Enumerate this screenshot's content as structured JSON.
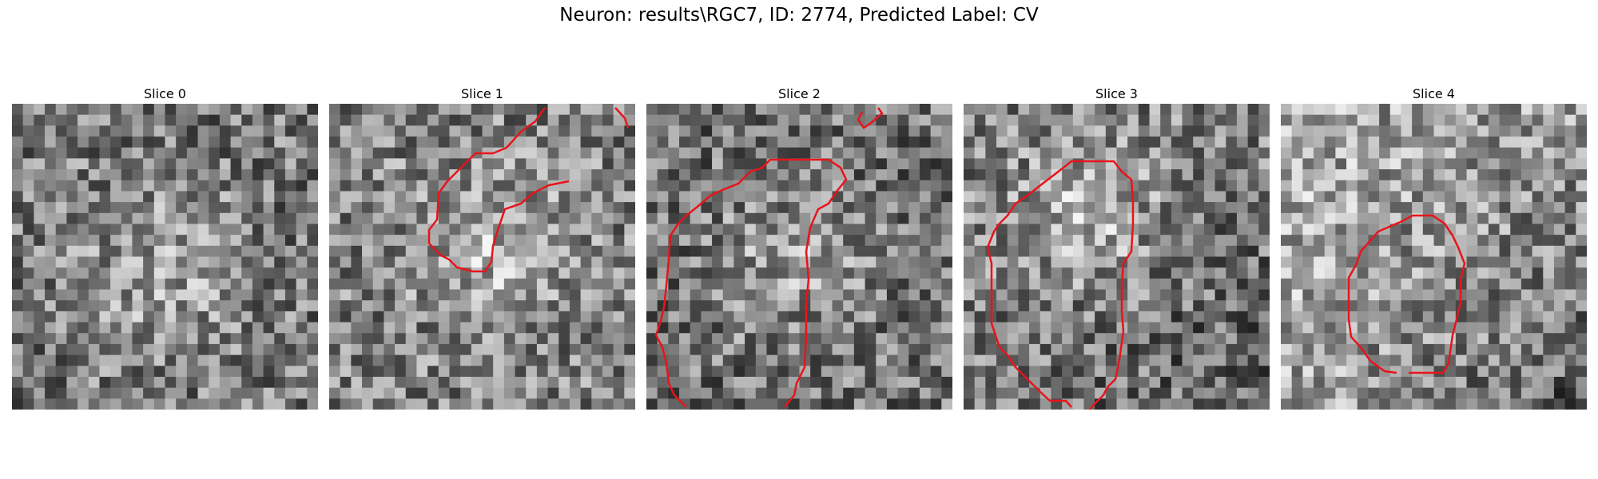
{
  "figure": {
    "title": "Neuron: results\\RGC7, ID: 2774, Predicted Label: CV"
  },
  "panels": [
    {
      "title": "Slice 0",
      "image": "grayscale-noise-slice",
      "contour": false
    },
    {
      "title": "Slice 1",
      "image": "grayscale-noise-slice",
      "contour": true
    },
    {
      "title": "Slice 2",
      "image": "grayscale-noise-slice",
      "contour": true
    },
    {
      "title": "Slice 3",
      "image": "grayscale-noise-slice",
      "contour": true
    },
    {
      "title": "Slice 4",
      "image": "grayscale-noise-slice",
      "contour": true
    }
  ],
  "colors": {
    "contour": "#e8141b"
  }
}
